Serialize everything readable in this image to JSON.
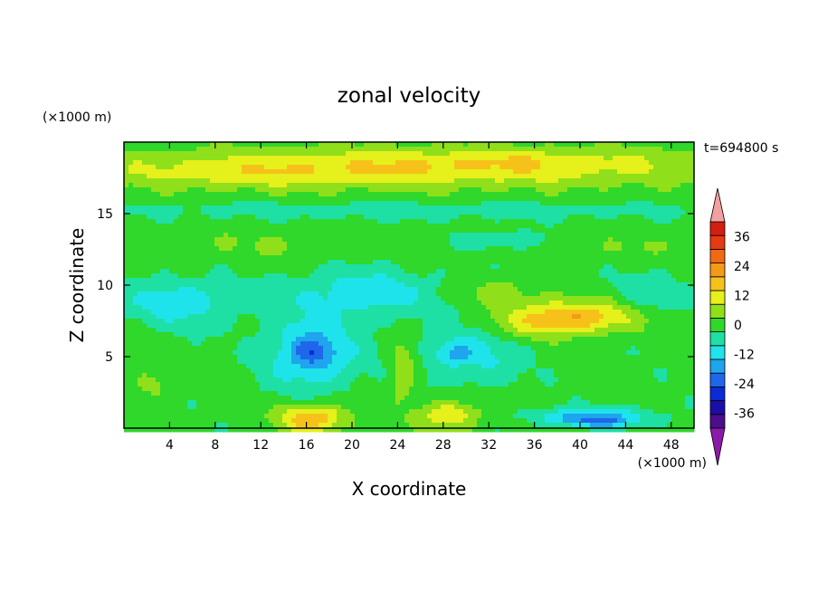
{
  "chart_data": {
    "type": "heatmap",
    "title": "zonal velocity",
    "xlabel": "X coordinate",
    "ylabel": "Z coordinate",
    "x_unit": "(×1000 m)",
    "y_unit": "(×1000 m)",
    "time_label": "t=694800 s",
    "xlim": [
      0,
      50
    ],
    "ylim": [
      0,
      20
    ],
    "x_ticks": [
      4,
      8,
      12,
      16,
      20,
      24,
      28,
      32,
      36,
      40,
      44,
      48
    ],
    "y_ticks": [
      5,
      10,
      15
    ],
    "colorbar": {
      "ticks": [
        36,
        24,
        12,
        0,
        -12,
        -24,
        -36
      ],
      "levels": [
        -36,
        -30,
        -24,
        -18,
        -12,
        -6,
        0,
        6,
        12,
        18,
        24,
        30,
        36
      ],
      "colors": [
        "#4b0e8c",
        "#1b0ea8",
        "#0b2bd6",
        "#1f67ea",
        "#1fa4ee",
        "#1fe3ea",
        "#1ee0a4",
        "#2fd82a",
        "#8fe01a",
        "#e6f01a",
        "#f6c21a",
        "#f49a18",
        "#f06a14",
        "#e63a12",
        "#d41e10"
      ],
      "under_color": "#8b1aa8",
      "over_color": "#f4a0a0"
    },
    "features": [
      {
        "x": 25,
        "z": 18.2,
        "sx": 28,
        "sz": 1.4,
        "v": 16
      },
      {
        "x": 10,
        "z": 17.6,
        "sx": 10,
        "sz": 1.0,
        "v": 4
      },
      {
        "x": 36,
        "z": 18.8,
        "sx": 9,
        "sz": 0.8,
        "v": 4
      },
      {
        "x": 25,
        "z": 15.2,
        "sx": 28,
        "sz": 0.6,
        "v": -6
      },
      {
        "x": 12,
        "z": 12.8,
        "sx": 9,
        "sz": 1.2,
        "v": 4
      },
      {
        "x": 44,
        "z": 12.6,
        "sx": 5,
        "sz": 1.0,
        "v": 4
      },
      {
        "x": 33,
        "z": 13.2,
        "sx": 4,
        "sz": 0.6,
        "v": -8
      },
      {
        "x": 5,
        "z": 8.8,
        "sx": 5,
        "sz": 1.6,
        "v": -12
      },
      {
        "x": 21,
        "z": 9.5,
        "sx": 6,
        "sz": 1.6,
        "v": -12
      },
      {
        "x": 16.5,
        "z": 5.3,
        "sx": 4,
        "sz": 2.6,
        "v": -16
      },
      {
        "x": 16.5,
        "z": 5.3,
        "sx": 1.7,
        "sz": 0.9,
        "v": -10
      },
      {
        "x": 30.5,
        "z": 5.6,
        "sx": 4.5,
        "sz": 2.4,
        "v": -11
      },
      {
        "x": 28.8,
        "z": 5.2,
        "sx": 1.6,
        "sz": 0.7,
        "v": -8
      },
      {
        "x": 46,
        "z": 9.0,
        "sx": 4,
        "sz": 1.6,
        "v": -8
      },
      {
        "x": 39,
        "z": 7.8,
        "sx": 6,
        "sz": 1.2,
        "v": 14
      },
      {
        "x": 33,
        "z": 9.5,
        "sx": 3,
        "sz": 1.0,
        "v": 8
      },
      {
        "x": 24.5,
        "z": 4.0,
        "sx": 1.2,
        "sz": 2.2,
        "v": 10
      },
      {
        "x": 2.5,
        "z": 3.0,
        "sx": 2.2,
        "sz": 1.2,
        "v": 6
      },
      {
        "x": 16.5,
        "z": 0.7,
        "sx": 3,
        "sz": 1.0,
        "v": 22
      },
      {
        "x": 28.5,
        "z": 0.9,
        "sx": 2.6,
        "sz": 1.0,
        "v": 16
      },
      {
        "x": 41,
        "z": 0.8,
        "sx": 5,
        "sz": 0.6,
        "v": -18
      },
      {
        "x": 42,
        "z": 0.4,
        "sx": 3,
        "sz": 0.3,
        "v": -10
      }
    ]
  }
}
